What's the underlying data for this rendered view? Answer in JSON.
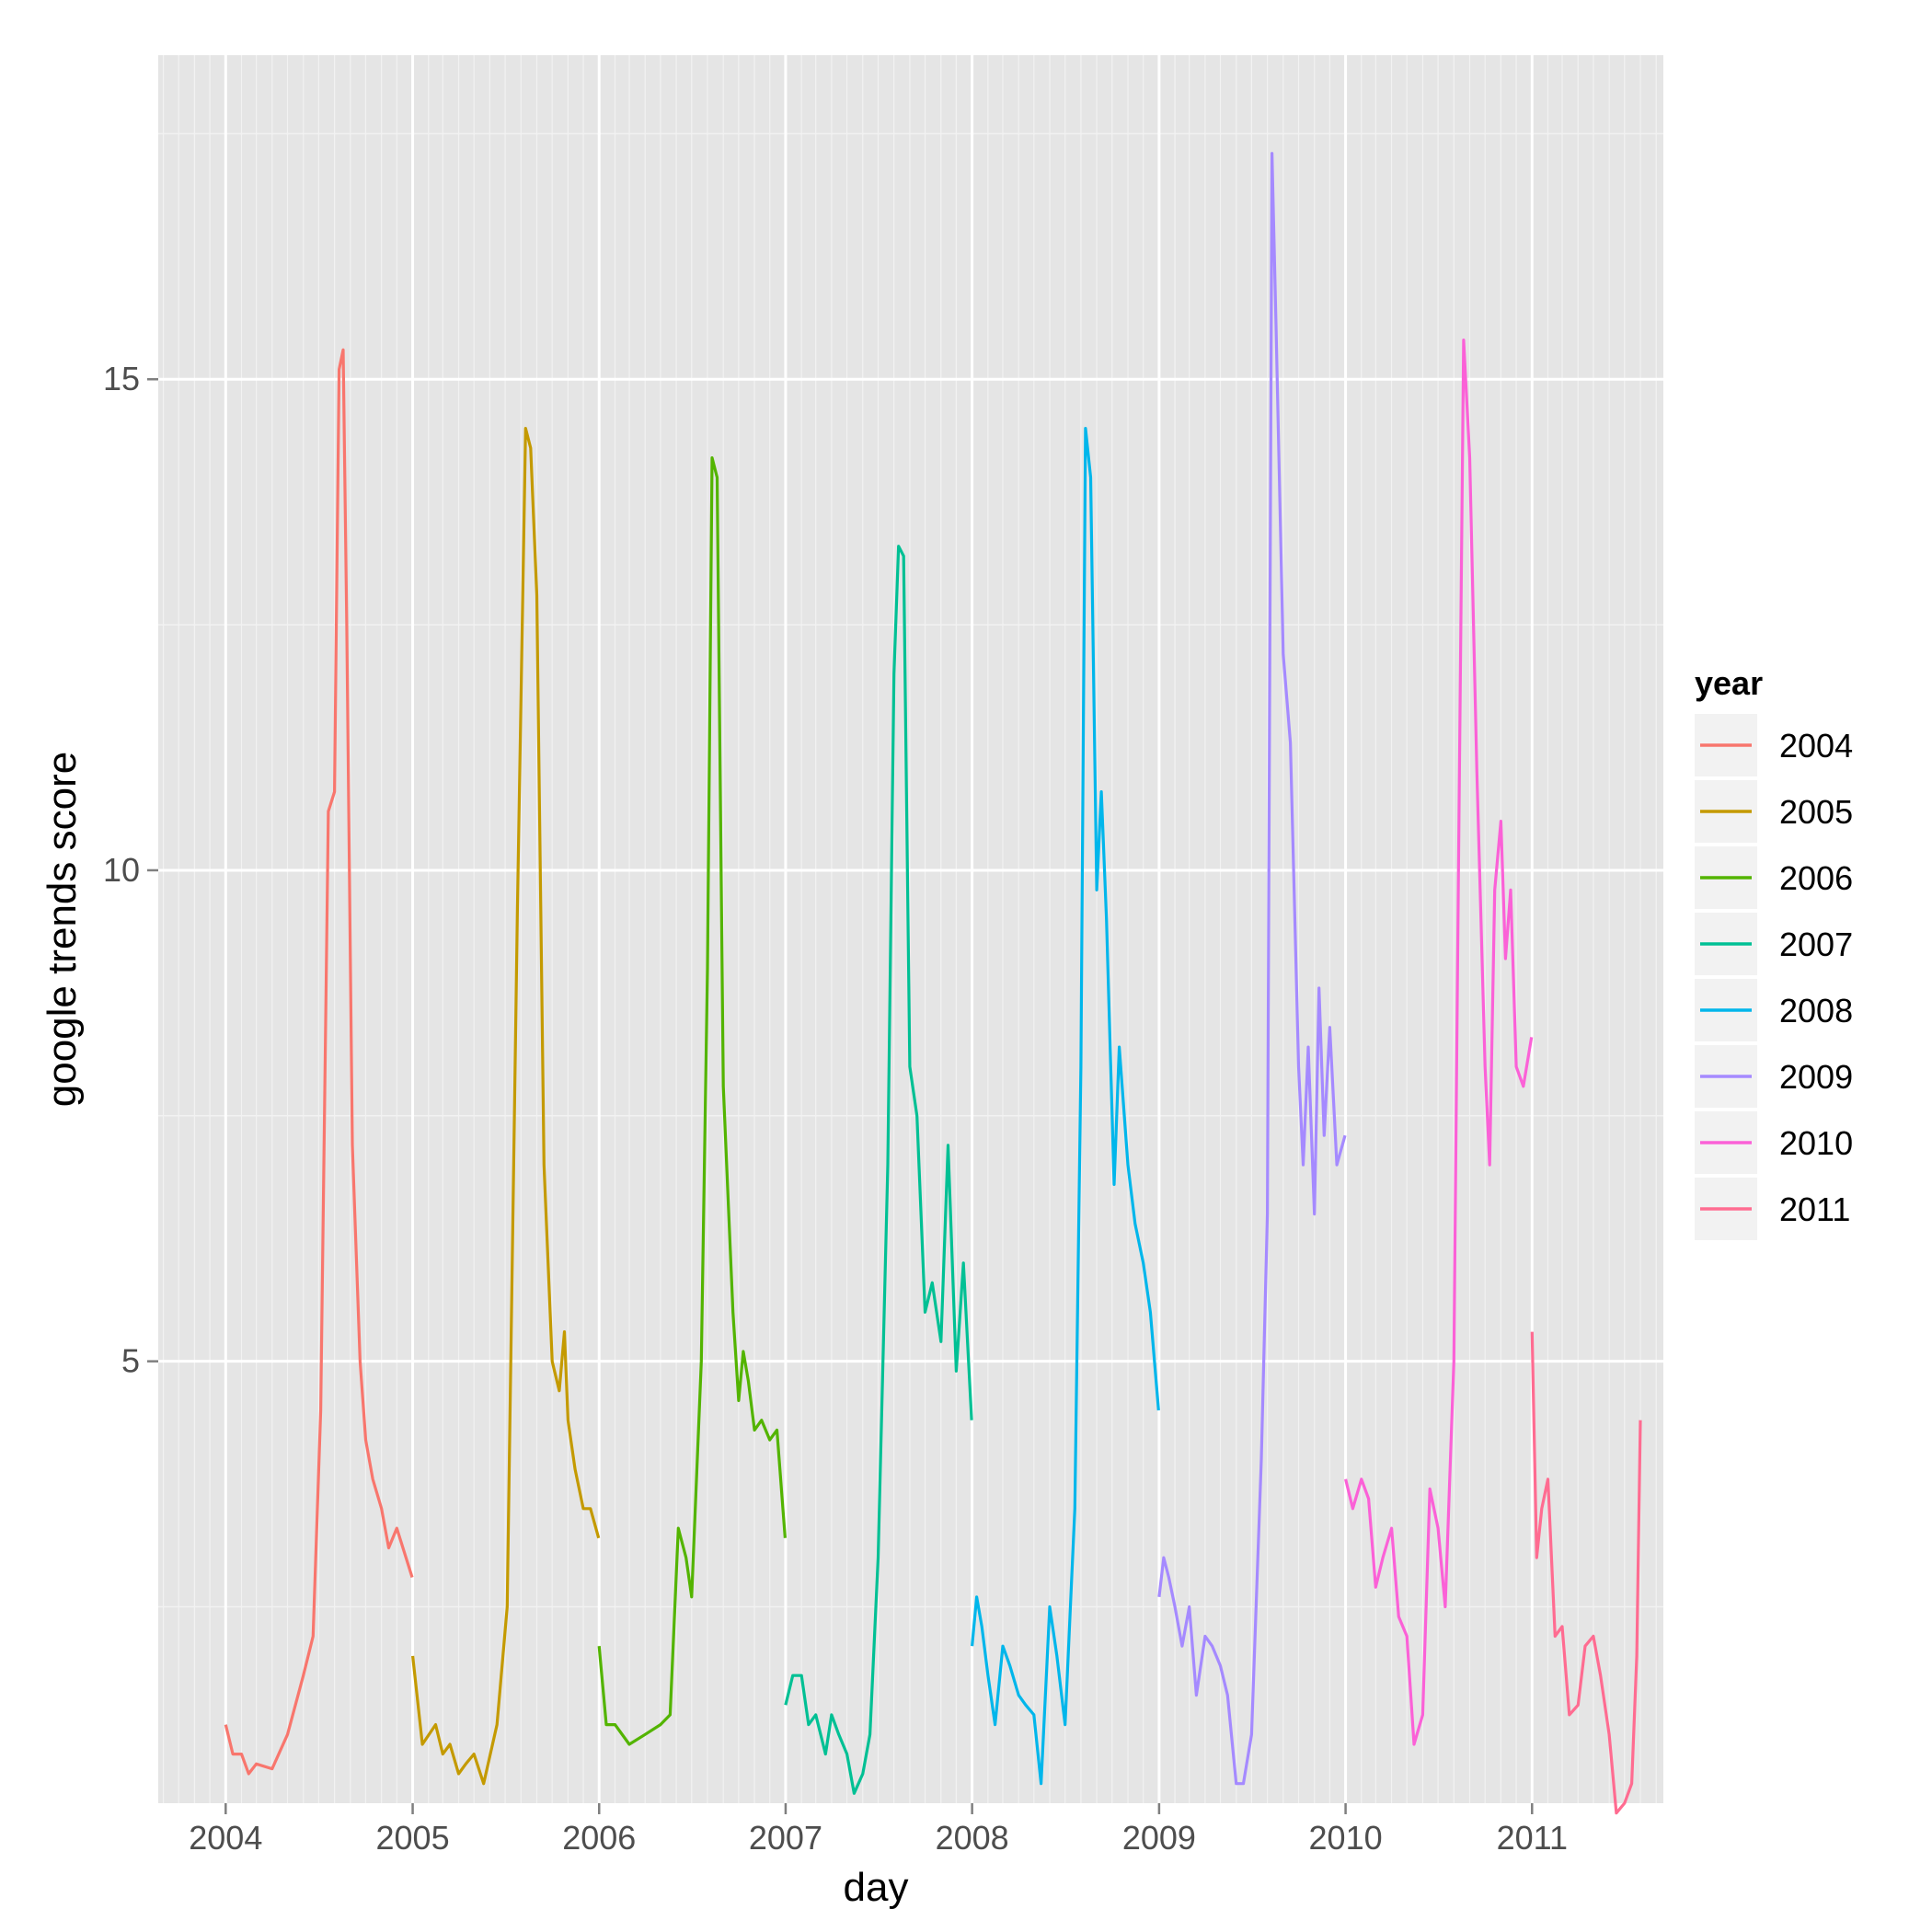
{
  "chart_data": {
    "type": "line",
    "title": "",
    "xlabel": "day",
    "ylabel": "google trends score",
    "xlim": [
      "2003-08-22",
      "2011-09-15"
    ],
    "ylim": [
      0.5,
      18.3
    ],
    "x_ticks": [
      "2004",
      "2005",
      "2006",
      "2007",
      "2008",
      "2009",
      "2010",
      "2011"
    ],
    "y_ticks": [
      "5",
      "10",
      "15"
    ],
    "y_tick_values": [
      5,
      10,
      15
    ],
    "grid": true,
    "legend": {
      "title": "year",
      "position": "right",
      "entries": [
        "2004",
        "2005",
        "2006",
        "2007",
        "2008",
        "2009",
        "2010",
        "2011"
      ]
    },
    "series": [
      {
        "name": "2004",
        "color": "#F8766D",
        "points": [
          [
            "2004-01-01",
            1.3
          ],
          [
            "2004-01-15",
            1.0
          ],
          [
            "2004-02-01",
            1.0
          ],
          [
            "2004-02-15",
            0.8
          ],
          [
            "2004-03-01",
            0.9
          ],
          [
            "2004-04-01",
            0.85
          ],
          [
            "2004-05-01",
            1.2
          ],
          [
            "2004-06-01",
            1.8
          ],
          [
            "2004-06-20",
            2.2
          ],
          [
            "2004-07-05",
            4.5
          ],
          [
            "2004-07-20",
            10.6
          ],
          [
            "2004-08-01",
            10.8
          ],
          [
            "2004-08-10",
            15.1
          ],
          [
            "2004-08-18",
            15.3
          ],
          [
            "2004-08-25",
            12.5
          ],
          [
            "2004-09-05",
            7.2
          ],
          [
            "2004-09-20",
            5.0
          ],
          [
            "2004-10-01",
            4.2
          ],
          [
            "2004-10-15",
            3.8
          ],
          [
            "2004-11-01",
            3.5
          ],
          [
            "2004-11-15",
            3.1
          ],
          [
            "2004-12-01",
            3.3
          ],
          [
            "2004-12-31",
            2.8
          ]
        ]
      },
      {
        "name": "2005",
        "color": "#C49A00",
        "points": [
          [
            "2005-01-01",
            2.0
          ],
          [
            "2005-01-20",
            1.1
          ],
          [
            "2005-02-15",
            1.3
          ],
          [
            "2005-03-01",
            1.0
          ],
          [
            "2005-03-15",
            1.1
          ],
          [
            "2005-04-01",
            0.8
          ],
          [
            "2005-04-15",
            0.9
          ],
          [
            "2005-05-01",
            1.0
          ],
          [
            "2005-05-20",
            0.7
          ],
          [
            "2005-06-15",
            1.3
          ],
          [
            "2005-07-05",
            2.5
          ],
          [
            "2005-07-25",
            9.6
          ],
          [
            "2005-08-10",
            14.5
          ],
          [
            "2005-08-20",
            14.3
          ],
          [
            "2005-09-01",
            12.8
          ],
          [
            "2005-09-15",
            7.0
          ],
          [
            "2005-10-01",
            5.0
          ],
          [
            "2005-10-15",
            4.7
          ],
          [
            "2005-10-25",
            5.3
          ],
          [
            "2005-11-01",
            4.4
          ],
          [
            "2005-11-15",
            3.9
          ],
          [
            "2005-12-01",
            3.5
          ],
          [
            "2005-12-15",
            3.5
          ],
          [
            "2005-12-31",
            3.2
          ]
        ]
      },
      {
        "name": "2006",
        "color": "#53B400",
        "points": [
          [
            "2006-01-01",
            2.1
          ],
          [
            "2006-01-15",
            1.3
          ],
          [
            "2006-02-01",
            1.3
          ],
          [
            "2006-03-01",
            1.1
          ],
          [
            "2006-04-01",
            1.2
          ],
          [
            "2006-05-01",
            1.3
          ],
          [
            "2006-05-20",
            1.4
          ],
          [
            "2006-06-05",
            3.3
          ],
          [
            "2006-06-20",
            3.0
          ],
          [
            "2006-07-01",
            2.6
          ],
          [
            "2006-07-20",
            5.0
          ],
          [
            "2006-08-01",
            9.0
          ],
          [
            "2006-08-10",
            14.2
          ],
          [
            "2006-08-20",
            14.0
          ],
          [
            "2006-09-01",
            7.8
          ],
          [
            "2006-09-20",
            5.5
          ],
          [
            "2006-10-01",
            4.6
          ],
          [
            "2006-10-10",
            5.1
          ],
          [
            "2006-10-20",
            4.8
          ],
          [
            "2006-11-01",
            4.3
          ],
          [
            "2006-11-15",
            4.4
          ],
          [
            "2006-12-01",
            4.2
          ],
          [
            "2006-12-15",
            4.3
          ],
          [
            "2006-12-31",
            3.2
          ]
        ]
      },
      {
        "name": "2007",
        "color": "#00C094",
        "points": [
          [
            "2007-01-01",
            1.5
          ],
          [
            "2007-01-15",
            1.8
          ],
          [
            "2007-02-01",
            1.8
          ],
          [
            "2007-02-15",
            1.3
          ],
          [
            "2007-03-01",
            1.4
          ],
          [
            "2007-03-20",
            1.0
          ],
          [
            "2007-04-01",
            1.4
          ],
          [
            "2007-04-15",
            1.2
          ],
          [
            "2007-05-01",
            1.0
          ],
          [
            "2007-05-15",
            0.6
          ],
          [
            "2007-06-01",
            0.8
          ],
          [
            "2007-06-15",
            1.2
          ],
          [
            "2007-07-01",
            3.0
          ],
          [
            "2007-07-20",
            7.0
          ],
          [
            "2007-08-01",
            12.0
          ],
          [
            "2007-08-10",
            13.3
          ],
          [
            "2007-08-20",
            13.2
          ],
          [
            "2007-09-01",
            8.0
          ],
          [
            "2007-09-15",
            7.5
          ],
          [
            "2007-10-01",
            5.5
          ],
          [
            "2007-10-15",
            5.8
          ],
          [
            "2007-11-01",
            5.2
          ],
          [
            "2007-11-15",
            7.2
          ],
          [
            "2007-12-01",
            4.9
          ],
          [
            "2007-12-15",
            6.0
          ],
          [
            "2007-12-31",
            4.4
          ]
        ]
      },
      {
        "name": "2008",
        "color": "#00B6EB",
        "points": [
          [
            "2008-01-01",
            2.1
          ],
          [
            "2008-01-10",
            2.6
          ],
          [
            "2008-01-20",
            2.3
          ],
          [
            "2008-02-01",
            1.8
          ],
          [
            "2008-02-15",
            1.3
          ],
          [
            "2008-03-01",
            2.1
          ],
          [
            "2008-03-15",
            1.9
          ],
          [
            "2008-04-01",
            1.6
          ],
          [
            "2008-04-15",
            1.5
          ],
          [
            "2008-05-01",
            1.4
          ],
          [
            "2008-05-15",
            0.7
          ],
          [
            "2008-06-01",
            2.5
          ],
          [
            "2008-06-15",
            2.0
          ],
          [
            "2008-07-01",
            1.3
          ],
          [
            "2008-07-20",
            3.5
          ],
          [
            "2008-08-01",
            8.0
          ],
          [
            "2008-08-10",
            14.5
          ],
          [
            "2008-08-20",
            14.0
          ],
          [
            "2008-09-01",
            9.8
          ],
          [
            "2008-09-10",
            10.8
          ],
          [
            "2008-09-20",
            9.5
          ],
          [
            "2008-10-05",
            6.8
          ],
          [
            "2008-10-15",
            8.2
          ],
          [
            "2008-11-01",
            7.0
          ],
          [
            "2008-11-15",
            6.4
          ],
          [
            "2008-12-01",
            6.0
          ],
          [
            "2008-12-15",
            5.5
          ],
          [
            "2008-12-31",
            4.5
          ]
        ]
      },
      {
        "name": "2009",
        "color": "#A58AFF",
        "points": [
          [
            "2009-01-01",
            2.6
          ],
          [
            "2009-01-10",
            3.0
          ],
          [
            "2009-01-20",
            2.8
          ],
          [
            "2009-02-01",
            2.5
          ],
          [
            "2009-02-15",
            2.1
          ],
          [
            "2009-03-01",
            2.5
          ],
          [
            "2009-03-15",
            1.6
          ],
          [
            "2009-04-01",
            2.2
          ],
          [
            "2009-04-15",
            2.1
          ],
          [
            "2009-05-01",
            1.9
          ],
          [
            "2009-05-15",
            1.6
          ],
          [
            "2009-06-01",
            0.7
          ],
          [
            "2009-06-15",
            0.7
          ],
          [
            "2009-07-01",
            1.2
          ],
          [
            "2009-07-20",
            4.0
          ],
          [
            "2009-08-01",
            6.5
          ],
          [
            "2009-08-10",
            17.3
          ],
          [
            "2009-08-18",
            15.5
          ],
          [
            "2009-09-01",
            12.2
          ],
          [
            "2009-09-15",
            11.3
          ],
          [
            "2009-10-01",
            8.0
          ],
          [
            "2009-10-10",
            7.0
          ],
          [
            "2009-10-20",
            8.2
          ],
          [
            "2009-11-01",
            6.5
          ],
          [
            "2009-11-10",
            8.8
          ],
          [
            "2009-11-20",
            7.3
          ],
          [
            "2009-12-01",
            8.4
          ],
          [
            "2009-12-15",
            7.0
          ],
          [
            "2009-12-31",
            7.3
          ]
        ]
      },
      {
        "name": "2010",
        "color": "#FB61D7",
        "points": [
          [
            "2010-01-01",
            3.8
          ],
          [
            "2010-01-15",
            3.5
          ],
          [
            "2010-02-01",
            3.8
          ],
          [
            "2010-02-15",
            3.6
          ],
          [
            "2010-03-01",
            2.7
          ],
          [
            "2010-03-15",
            3.0
          ],
          [
            "2010-04-01",
            3.3
          ],
          [
            "2010-04-15",
            2.4
          ],
          [
            "2010-05-01",
            2.2
          ],
          [
            "2010-05-15",
            1.1
          ],
          [
            "2010-06-01",
            1.4
          ],
          [
            "2010-06-15",
            3.7
          ],
          [
            "2010-07-01",
            3.3
          ],
          [
            "2010-07-15",
            2.5
          ],
          [
            "2010-08-01",
            5.0
          ],
          [
            "2010-08-10",
            10.0
          ],
          [
            "2010-08-20",
            15.4
          ],
          [
            "2010-09-01",
            14.2
          ],
          [
            "2010-09-15",
            11.0
          ],
          [
            "2010-10-01",
            8.0
          ],
          [
            "2010-10-10",
            7.0
          ],
          [
            "2010-10-20",
            9.8
          ],
          [
            "2010-11-01",
            10.5
          ],
          [
            "2010-11-10",
            9.1
          ],
          [
            "2010-11-20",
            9.8
          ],
          [
            "2010-12-01",
            8.0
          ],
          [
            "2010-12-15",
            7.8
          ],
          [
            "2010-12-31",
            8.3
          ]
        ]
      },
      {
        "name": "2011",
        "color": "#FF6C91",
        "points": [
          [
            "2011-01-01",
            5.3
          ],
          [
            "2011-01-10",
            3.0
          ],
          [
            "2011-01-20",
            3.5
          ],
          [
            "2011-02-01",
            3.8
          ],
          [
            "2011-02-15",
            2.2
          ],
          [
            "2011-03-01",
            2.3
          ],
          [
            "2011-03-15",
            1.4
          ],
          [
            "2011-04-01",
            1.5
          ],
          [
            "2011-04-15",
            2.1
          ],
          [
            "2011-05-01",
            2.2
          ],
          [
            "2011-05-15",
            1.8
          ],
          [
            "2011-06-01",
            1.2
          ],
          [
            "2011-06-15",
            0.4
          ],
          [
            "2011-07-01",
            0.5
          ],
          [
            "2011-07-15",
            0.7
          ],
          [
            "2011-07-25",
            2.0
          ],
          [
            "2011-08-01",
            4.4
          ]
        ]
      }
    ]
  }
}
